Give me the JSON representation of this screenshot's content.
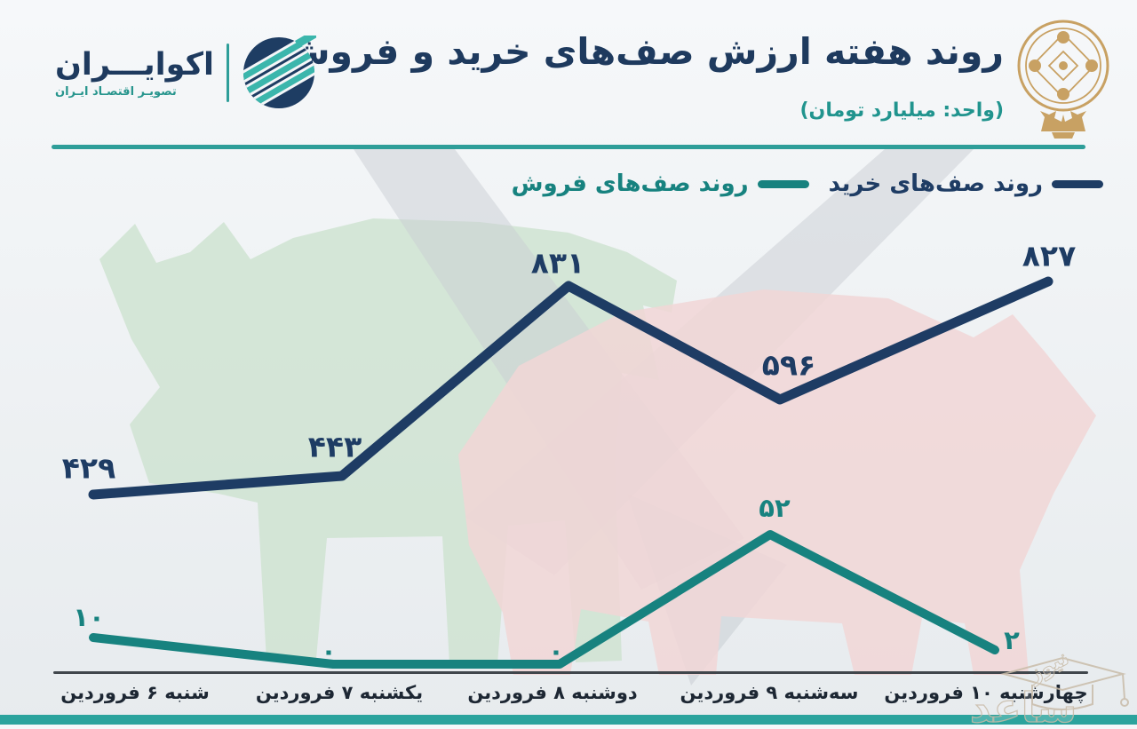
{
  "header": {
    "title": "روند هفته ارزش صف‌های خرید و فروش",
    "unit_label": "(واحد: میلیارد تومان)",
    "brand": {
      "name": "اکوایـــران",
      "tagline": "تصویـر اقتصـاد ایـران"
    }
  },
  "chart_data": {
    "type": "line",
    "categories": [
      "شنبه ۶ فروردین",
      "یکشنبه ۷ فروردین",
      "دوشنبه ۸ فروردین",
      "سه‌شنبه ۹ فروردین",
      "چهارشنبه ۱۰ فروردین"
    ],
    "series": [
      {
        "name": "روند صف‌های خرید",
        "values": [
          429,
          443,
          831,
          596,
          827
        ],
        "labels": [
          "۴۲۹",
          "۴۴۳",
          "۸۳۱",
          "۵۹۶",
          "۸۲۷"
        ],
        "color": "#1e3c64"
      },
      {
        "name": "روند صف‌های فروش",
        "values": [
          10,
          0,
          0,
          52,
          2
        ],
        "labels": [
          "۱۰",
          "۰",
          "۰",
          "۵۲",
          "۲"
        ],
        "color": "#17827f"
      }
    ],
    "title": "روند هفته ارزش صف‌های خرید و فروش",
    "xlabel": "",
    "ylabel": "میلیارد تومان",
    "grid": false,
    "legend_position": "top-right",
    "note": "two series drawn with independent vertical scales on one canvas"
  },
  "watermark": {
    "brand_big": "ساعد",
    "brand_small": "نیوز"
  },
  "colors": {
    "navy": "#1e3c64",
    "teal": "#17827f",
    "teal_accent": "#2e9e99",
    "gold": "#c8a163",
    "bull_green": "#cde2cf",
    "bear_pink": "#f1d6d6",
    "arrow_gray": "#c9ced3"
  }
}
